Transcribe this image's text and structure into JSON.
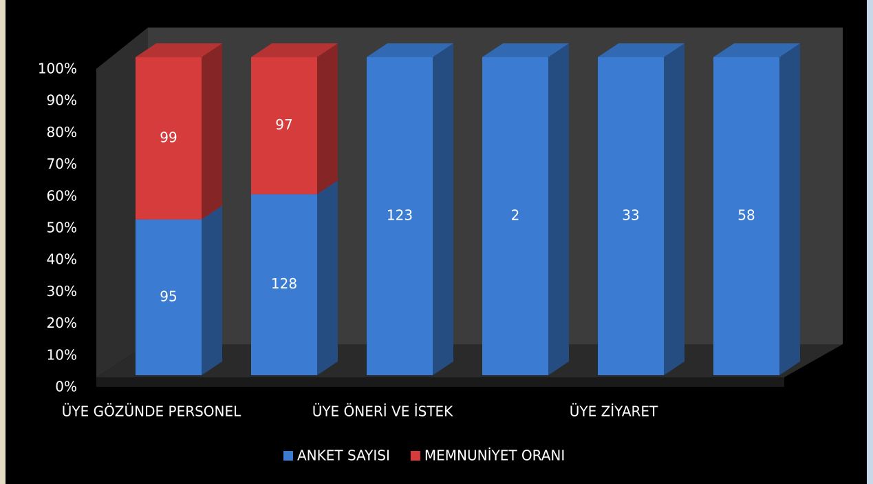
{
  "chart_data": {
    "type": "bar",
    "stacking": "percent",
    "categories": [
      "ÜYE GÖZÜNDE PERSONEL",
      null,
      "ÜYE ÖNERİ VE İSTEK",
      null,
      "ÜYE ZİYARET",
      null
    ],
    "series": [
      {
        "name": "ANKET SAYISI",
        "color": "#3b7cd2",
        "values": [
          95,
          128,
          123,
          2,
          33,
          58
        ]
      },
      {
        "name": "MEMNUNİYET ORANI",
        "color": "#d63c3c",
        "values": [
          99,
          97,
          null,
          null,
          null,
          null
        ]
      }
    ],
    "ylim": [
      0,
      100
    ],
    "yticks": [
      {
        "value": 0,
        "label": "0%"
      },
      {
        "value": 10,
        "label": "10%"
      },
      {
        "value": 20,
        "label": "20%"
      },
      {
        "value": 30,
        "label": "30%"
      },
      {
        "value": 40,
        "label": "40%"
      },
      {
        "value": 50,
        "label": "50%"
      },
      {
        "value": 60,
        "label": "60%"
      },
      {
        "value": 70,
        "label": "70%"
      },
      {
        "value": 80,
        "label": "80%"
      },
      {
        "value": 90,
        "label": "90%"
      },
      {
        "value": 100,
        "label": "100%"
      }
    ],
    "legend": "bottom"
  }
}
